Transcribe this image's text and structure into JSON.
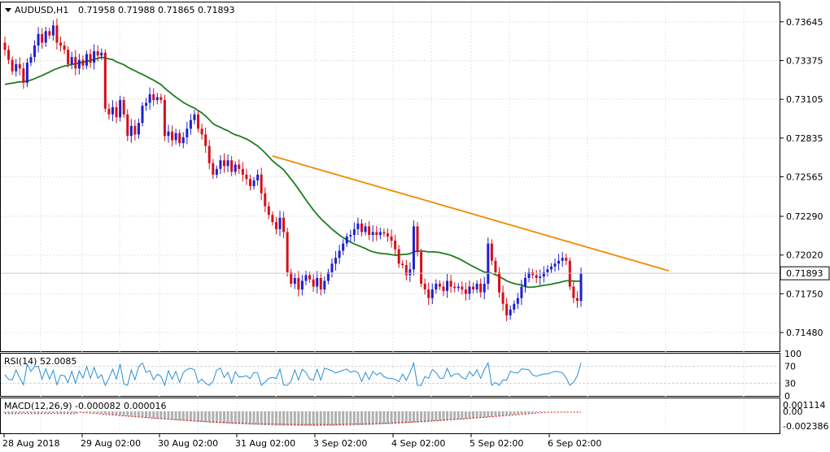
{
  "header": {
    "symbol": "AUDUSD,H1",
    "ohlc": "0.71958 0.71988 0.71865 0.71893"
  },
  "rsi_header": "RSI(14) 52.0085",
  "macd_header": "MACD(12,26,9) -0.000082 0.000016",
  "colors": {
    "bull": "#1f1fcf",
    "bear": "#d4101a",
    "ma": "#1e7d1e",
    "trendline": "#f08a00",
    "rsi": "#2a8fd6",
    "macd_signal": "#d4101a",
    "macd_hist": "#b0b0b0"
  },
  "chart_data": [
    {
      "type": "candlestick",
      "symbol": "AUDUSD",
      "timeframe": "H1",
      "ylim": [
        0.7135,
        0.7378
      ],
      "yticks": [
        "0.73645",
        "0.73375",
        "0.73105",
        "0.72835",
        "0.72565",
        "0.72290",
        "0.72020",
        "0.71750",
        "0.71480"
      ],
      "xticks": [
        "28 Aug 2018",
        "29 Aug 02:00",
        "30 Aug 02:00",
        "31 Aug 02:00",
        "3 Sep 02:00",
        "4 Sep 02:00",
        "5 Sep 02:00",
        "6 Sep 02:00"
      ],
      "current_price": "0.71893",
      "candle_closes": [
        0.7345,
        0.7338,
        0.733,
        0.7335,
        0.7332,
        0.7322,
        0.7336,
        0.734,
        0.7348,
        0.7356,
        0.735,
        0.7358,
        0.7355,
        0.7362,
        0.735,
        0.7348,
        0.7345,
        0.7335,
        0.734,
        0.7332,
        0.7338,
        0.7334,
        0.7342,
        0.7336,
        0.7344,
        0.7341,
        0.7343,
        0.7304,
        0.73,
        0.7305,
        0.7298,
        0.731,
        0.73,
        0.7285,
        0.7292,
        0.7286,
        0.7294,
        0.7306,
        0.7308,
        0.7314,
        0.731,
        0.7312,
        0.731,
        0.7285,
        0.7288,
        0.7282,
        0.7287,
        0.728,
        0.7284,
        0.729,
        0.7296,
        0.73,
        0.729,
        0.7286,
        0.7278,
        0.7266,
        0.7258,
        0.7262,
        0.7268,
        0.7264,
        0.7268,
        0.726,
        0.7265,
        0.7262,
        0.7258,
        0.7255,
        0.725,
        0.7254,
        0.7258,
        0.7245,
        0.7236,
        0.723,
        0.7225,
        0.722,
        0.7228,
        0.7218,
        0.719,
        0.7182,
        0.7186,
        0.7178,
        0.7184,
        0.7188,
        0.7185,
        0.718,
        0.7186,
        0.7178,
        0.7184,
        0.719,
        0.7196,
        0.72,
        0.7205,
        0.721,
        0.7215,
        0.7216,
        0.722,
        0.7224,
        0.7218,
        0.7222,
        0.7216,
        0.7218,
        0.7216,
        0.7218,
        0.7217,
        0.7215,
        0.7212,
        0.7206,
        0.7196,
        0.7195,
        0.7188,
        0.7192,
        0.7222,
        0.7204,
        0.7182,
        0.7178,
        0.7172,
        0.7178,
        0.7182,
        0.718,
        0.7177,
        0.7184,
        0.718,
        0.7179,
        0.718,
        0.7178,
        0.7175,
        0.718,
        0.7178,
        0.7182,
        0.7176,
        0.7182,
        0.721,
        0.7198,
        0.719,
        0.7176,
        0.7168,
        0.716,
        0.7164,
        0.7168,
        0.7172,
        0.718,
        0.7186,
        0.719,
        0.7188,
        0.7186,
        0.7187,
        0.719,
        0.7192,
        0.7194,
        0.7196,
        0.7198,
        0.72,
        0.7198,
        0.718,
        0.7172,
        0.717,
        0.7189
      ],
      "series": [
        {
          "name": "",
          "type": "moving-average",
          "color": "#1e7d1e"
        },
        {
          "name": "",
          "type": "trendline",
          "color": "#f08a00",
          "from": 0.7271,
          "to": 0.7191
        }
      ],
      "grid": true
    },
    {
      "type": "line",
      "indicator": "RSI(14)",
      "value": 52.0085,
      "ylim": [
        0,
        100
      ],
      "yticks": [
        "100",
        "70",
        "30",
        "0"
      ]
    },
    {
      "type": "bar",
      "indicator": "MACD(12,26,9)",
      "macd": -8.2e-05,
      "signal": 1.6e-05,
      "yticks": [
        "0.001114",
        "0.00",
        "-0.002386"
      ]
    }
  ]
}
